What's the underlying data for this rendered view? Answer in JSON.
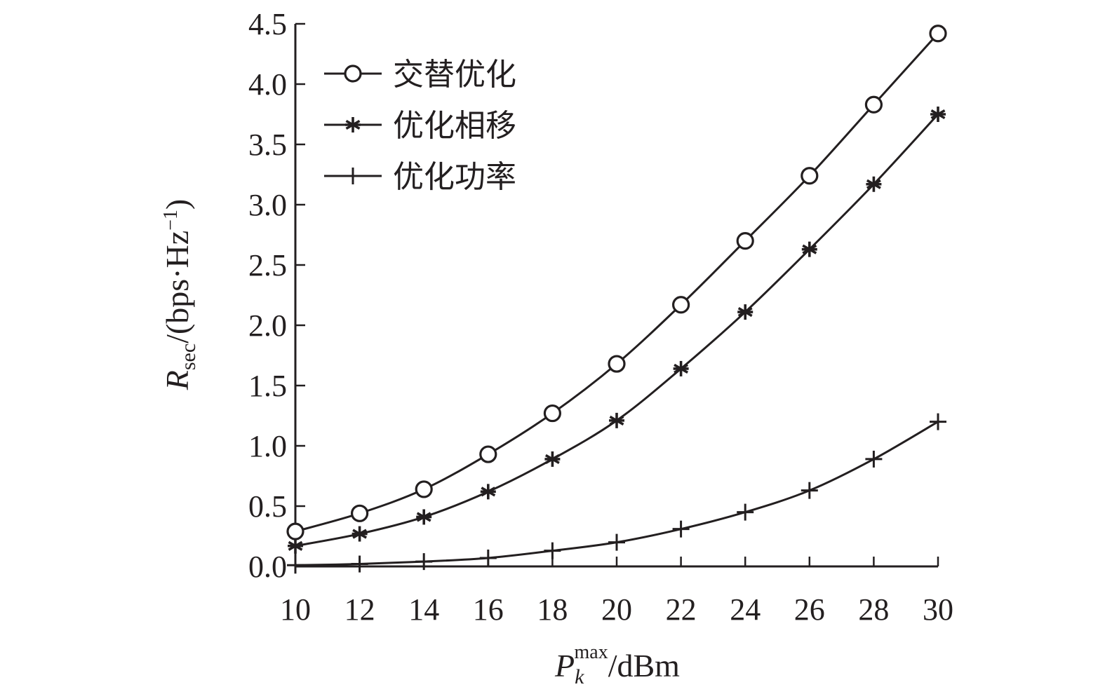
{
  "chart_data": {
    "type": "line",
    "x": [
      10,
      12,
      14,
      16,
      18,
      20,
      22,
      24,
      26,
      28,
      30
    ],
    "x_ticks": [
      "10",
      "12",
      "14",
      "16",
      "18",
      "20",
      "22",
      "24",
      "26",
      "28",
      "30"
    ],
    "xlim": [
      10,
      30
    ],
    "ylim": [
      0,
      4.5
    ],
    "y_ticks": [
      "0.0",
      "0.5",
      "1.0",
      "1.5",
      "2.0",
      "2.5",
      "3.0",
      "3.5",
      "4.0",
      "4.5"
    ],
    "y_tick_values": [
      0,
      0.5,
      1.0,
      1.5,
      2.0,
      2.5,
      3.0,
      3.5,
      4.0,
      4.5
    ],
    "xlabel": {
      "main": "P",
      "sub": "k",
      "sup": "max",
      "unit": "/dBm"
    },
    "ylabel": {
      "main": "R",
      "sub": "sec",
      "unit": "/(bps·Hz",
      "sup": "−1",
      "close": ")"
    },
    "grid": false,
    "legend_position": "top-left",
    "series": [
      {
        "name": "交替优化",
        "marker": "circle",
        "values": [
          0.29,
          0.44,
          0.64,
          0.93,
          1.27,
          1.68,
          2.17,
          2.7,
          3.24,
          3.83,
          4.42
        ]
      },
      {
        "name": "优化相移",
        "marker": "asterisk",
        "values": [
          0.17,
          0.27,
          0.41,
          0.62,
          0.89,
          1.21,
          1.64,
          2.11,
          2.63,
          3.17,
          3.75
        ]
      },
      {
        "name": "优化功率",
        "marker": "plus",
        "values": [
          0.01,
          0.02,
          0.04,
          0.07,
          0.13,
          0.2,
          0.31,
          0.45,
          0.63,
          0.89,
          1.2
        ]
      }
    ],
    "line_color": "#231f20"
  }
}
